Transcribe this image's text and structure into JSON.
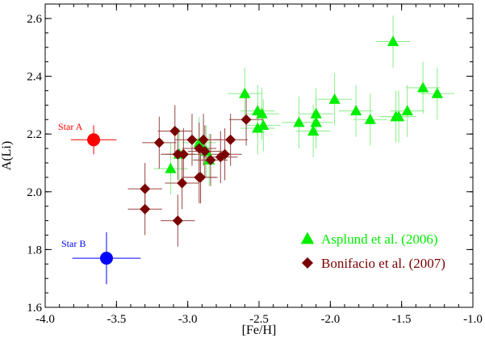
{
  "chart_data": {
    "type": "scatter",
    "xlabel": "[Fe/H]",
    "ylabel": "A(Li)",
    "xlim": [
      -4.0,
      -1.0
    ],
    "ylim": [
      1.6,
      2.65
    ],
    "xticks": [
      -4.0,
      -3.5,
      -3.0,
      -2.5,
      -2.0,
      -1.5,
      -1.0
    ],
    "xtick_labels": [
      "-4.0",
      "-3.5",
      "-3.0",
      "-2.5",
      "-2.0",
      "-1.5",
      "-1.0"
    ],
    "yticks": [
      1.6,
      1.8,
      2.0,
      2.2,
      2.4,
      2.6
    ],
    "ytick_labels": [
      "1.6",
      "1.8",
      "2.0",
      "2.2",
      "2.4",
      "2.6"
    ],
    "grid": false,
    "legend_position": "bottom-right",
    "colors": {
      "asplund": "#00ee00",
      "asplund_err": "#88ee88",
      "bonifacio": "#7a0000",
      "bonifacio_err": "#9a4545",
      "star_a": "#ff0000",
      "star_b": "#0000ff",
      "axes": "#000000"
    },
    "series": [
      {
        "name": "Asplund et al. (2006)",
        "marker": "triangle",
        "x": [
          -1.56,
          -1.35,
          -1.25,
          -2.6,
          -1.97,
          -1.82,
          -1.72,
          -1.54,
          -1.52,
          -1.46,
          -2.51,
          -2.48,
          -2.22,
          -2.12,
          -2.1,
          -2.1,
          -2.51,
          -2.47,
          -3.12,
          -3.06,
          -2.92,
          -2.87,
          -2.85
        ],
        "y": [
          2.52,
          2.36,
          2.34,
          2.34,
          2.32,
          2.28,
          2.25,
          2.26,
          2.26,
          2.28,
          2.28,
          2.27,
          2.24,
          2.21,
          2.27,
          2.24,
          2.22,
          2.23,
          2.08,
          2.13,
          2.17,
          2.14,
          2.11
        ],
        "xerr": [
          0.12,
          0.12,
          0.12,
          0.12,
          0.12,
          0.12,
          0.12,
          0.12,
          0.12,
          0.12,
          0.12,
          0.12,
          0.12,
          0.12,
          0.12,
          0.12,
          0.12,
          0.12,
          0.12,
          0.12,
          0.12,
          0.12,
          0.12
        ],
        "yerr": [
          0.09,
          0.09,
          0.09,
          0.09,
          0.09,
          0.09,
          0.09,
          0.09,
          0.09,
          0.09,
          0.09,
          0.09,
          0.09,
          0.09,
          0.09,
          0.09,
          0.09,
          0.09,
          0.09,
          0.09,
          0.09,
          0.09,
          0.09
        ]
      },
      {
        "name": "Bonifacio et al. (2007)",
        "marker": "diamond",
        "x": [
          -3.09,
          -3.2,
          -3.07,
          -3.03,
          -2.97,
          -2.89,
          -2.74,
          -2.92,
          -2.91,
          -2.77,
          -2.7,
          -2.59,
          -3.04,
          -3.3,
          -3.3,
          -2.92,
          -3.07,
          -2.88,
          -2.84
        ],
        "y": [
          2.21,
          2.17,
          2.13,
          2.13,
          2.18,
          2.18,
          2.13,
          2.15,
          2.05,
          2.12,
          2.18,
          2.25,
          2.03,
          2.01,
          1.94,
          2.05,
          1.9,
          2.14,
          2.11
        ],
        "xerr": [
          0.12,
          0.12,
          0.12,
          0.12,
          0.12,
          0.12,
          0.12,
          0.12,
          0.12,
          0.12,
          0.12,
          0.12,
          0.12,
          0.12,
          0.12,
          0.12,
          0.12,
          0.12,
          0.12
        ],
        "yerr": [
          0.09,
          0.09,
          0.09,
          0.09,
          0.09,
          0.09,
          0.09,
          0.09,
          0.09,
          0.09,
          0.09,
          0.09,
          0.09,
          0.09,
          0.09,
          0.09,
          0.09,
          0.09,
          0.09
        ]
      }
    ],
    "highlighted_points": [
      {
        "label": "Star A",
        "x": -3.66,
        "y": 2.18,
        "xerr": 0.16,
        "yerr": 0.05,
        "color": "#ff0000"
      },
      {
        "label": "Star B",
        "x": -3.57,
        "y": 1.77,
        "xerr": 0.24,
        "yerr": 0.09,
        "color": "#0000ff"
      }
    ]
  }
}
